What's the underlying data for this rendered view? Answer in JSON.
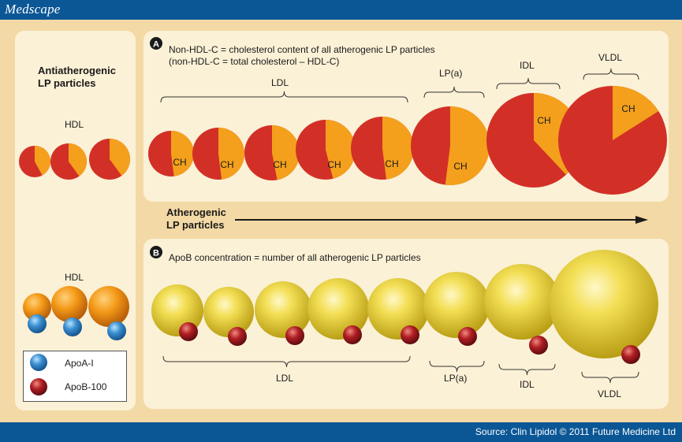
{
  "header": {
    "logo": "Medscape"
  },
  "footer": {
    "source": "Source: Clin Lipidol © 2011 Future Medicine Ltd"
  },
  "left_panel": {
    "title_line1": "Antiatherogenic",
    "title_line2": "LP particles",
    "hdl_top_label": "HDL",
    "hdl_bottom_label": "HDL",
    "legend": [
      {
        "label": "ApoA-I",
        "color": "#3a8fd0"
      },
      {
        "label": "ApoB-100",
        "color": "#b01e23"
      }
    ]
  },
  "panel_a": {
    "letter": "A",
    "line1": "Non-HDL-C = cholesterol content of all atherogenic LP particles",
    "line2": "(non-HDL-C = total cholesterol – HDL-C)",
    "groups": {
      "ldl": "LDL",
      "lpa": "LP(a)",
      "idl": "IDL",
      "vldl": "VLDL"
    },
    "ch_label": "CH"
  },
  "arrow": {
    "line1": "Atherogenic",
    "line2": "LP particles"
  },
  "panel_b": {
    "letter": "B",
    "line1": "ApoB concentration = number of all atherogenic LP particles",
    "groups": {
      "ldl": "LDL",
      "lpa": "LP(a)",
      "idl": "IDL",
      "vldl": "VLDL"
    }
  },
  "colors": {
    "red": "#d23027",
    "orange": "#f4a01c",
    "blue_bar": "#0b5796",
    "background": "#f3d9a5",
    "panel": "#fbf1d6"
  }
}
